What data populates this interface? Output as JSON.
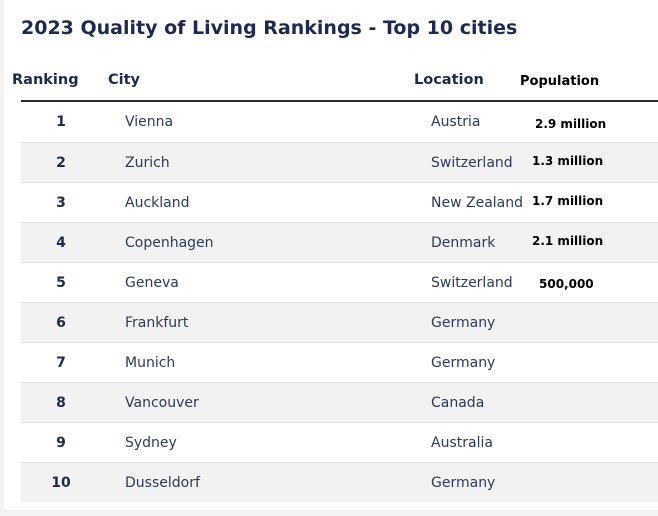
{
  "title": "2023 Quality of Living Rankings - Top 10 cities",
  "table": {
    "headers": [
      "Ranking",
      "City",
      "Location",
      "Population"
    ],
    "rows": [
      {
        "rank": 1,
        "city": "Vienna",
        "location": "Austria",
        "population": "2.9 million"
      },
      {
        "rank": 2,
        "city": "Zurich",
        "location": "Switzerland",
        "population": "1.3 million"
      },
      {
        "rank": 3,
        "city": "Auckland",
        "location": "New Zealand",
        "population": "1.7 million"
      },
      {
        "rank": 4,
        "city": "Copenhagen",
        "location": "Denmark",
        "population": "2.1 million"
      },
      {
        "rank": 5,
        "city": "Geneva",
        "location": "Switzerland",
        "population": "500,000"
      },
      {
        "rank": 6,
        "city": "Frankfurt",
        "location": "Germany"
      },
      {
        "rank": 7,
        "city": "Munich",
        "location": "Germany"
      },
      {
        "rank": 8,
        "city": "Vancouver",
        "location": "Canada"
      },
      {
        "rank": 9,
        "city": "Sydney",
        "location": "Australia"
      },
      {
        "rank": 10,
        "city": "Dusseldorf",
        "location": "Germany"
      }
    ]
  }
}
